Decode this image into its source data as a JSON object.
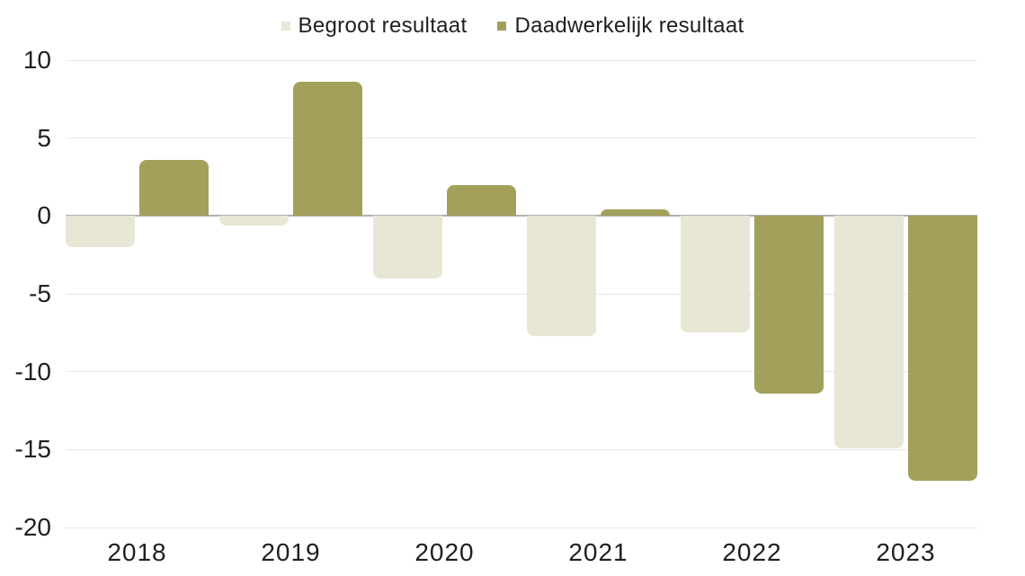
{
  "chart_data": {
    "type": "bar",
    "title": "",
    "xlabel": "",
    "ylabel": "",
    "categories": [
      "2018",
      "2019",
      "2020",
      "2021",
      "2022",
      "2023"
    ],
    "series": [
      {
        "name": "Begroot resultaat",
        "color": "#e8e6d5",
        "values": [
          -2.0,
          -0.6,
          -4.0,
          -7.7,
          -7.5,
          -14.9
        ]
      },
      {
        "name": "Daadwerkelijk resultaat",
        "color": "#a3a05b",
        "values": [
          3.6,
          8.6,
          2.0,
          0.4,
          -11.4,
          -17.0
        ]
      }
    ],
    "ylim": [
      -20,
      10
    ],
    "yticks": [
      10,
      5,
      0,
      -5,
      -10,
      -15,
      -20
    ],
    "grid": true,
    "legend_position": "top",
    "colors": {
      "gridline": "#e8e8e8",
      "zero_line": "#b0b0b0",
      "text": "#1f1f1f",
      "background": "#ffffff"
    }
  }
}
